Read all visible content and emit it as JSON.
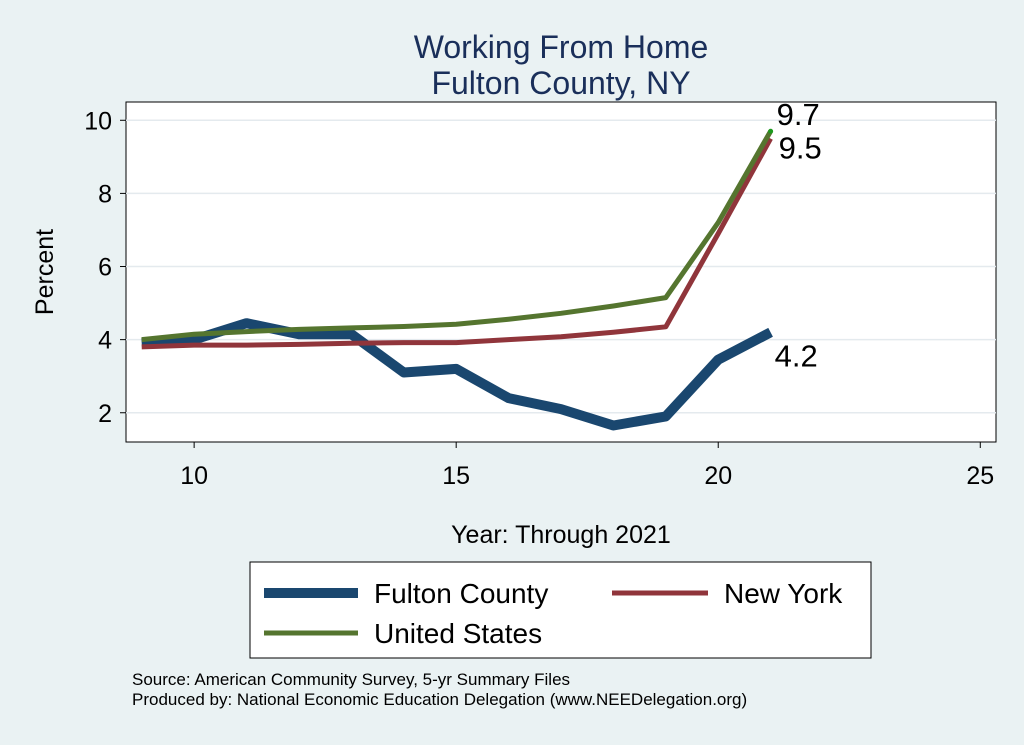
{
  "chart_data": {
    "type": "line",
    "title": "Working From Home",
    "subtitle": "Fulton County, NY",
    "xlabel": "Year: Through 2021",
    "ylabel": "Percent",
    "xlim": [
      8.7,
      25.3
    ],
    "ylim": [
      1.2,
      10.5
    ],
    "xticks": [
      10,
      15,
      20,
      25
    ],
    "yticks": [
      2,
      4,
      6,
      8,
      10
    ],
    "grid": true,
    "legend_position": "bottom",
    "x": [
      9,
      10,
      11,
      12,
      13,
      14,
      15,
      16,
      17,
      18,
      19,
      20,
      21
    ],
    "series": [
      {
        "name": "Fulton County",
        "color": "#1a476f",
        "values": [
          3.9,
          4.0,
          4.45,
          4.15,
          4.15,
          3.1,
          3.2,
          2.4,
          2.1,
          1.65,
          1.9,
          3.45,
          4.2
        ],
        "end_label": "4.2"
      },
      {
        "name": "New York",
        "color": "#90353b",
        "values": [
          3.8,
          3.85,
          3.85,
          3.87,
          3.9,
          3.92,
          3.92,
          4.0,
          4.08,
          4.2,
          4.35,
          6.9,
          9.5
        ],
        "end_label": "9.5"
      },
      {
        "name": "United States",
        "color": "#55752f",
        "values": [
          4.0,
          4.15,
          4.22,
          4.28,
          4.32,
          4.36,
          4.42,
          4.56,
          4.72,
          4.92,
          5.15,
          7.2,
          9.7
        ],
        "end_label": "9.7"
      }
    ]
  },
  "notes": {
    "source": "Source: American Community Survey, 5-yr Summary Files",
    "produced": "Produced by: National Economic Education Delegation (www.NEEDelegation.org)"
  }
}
